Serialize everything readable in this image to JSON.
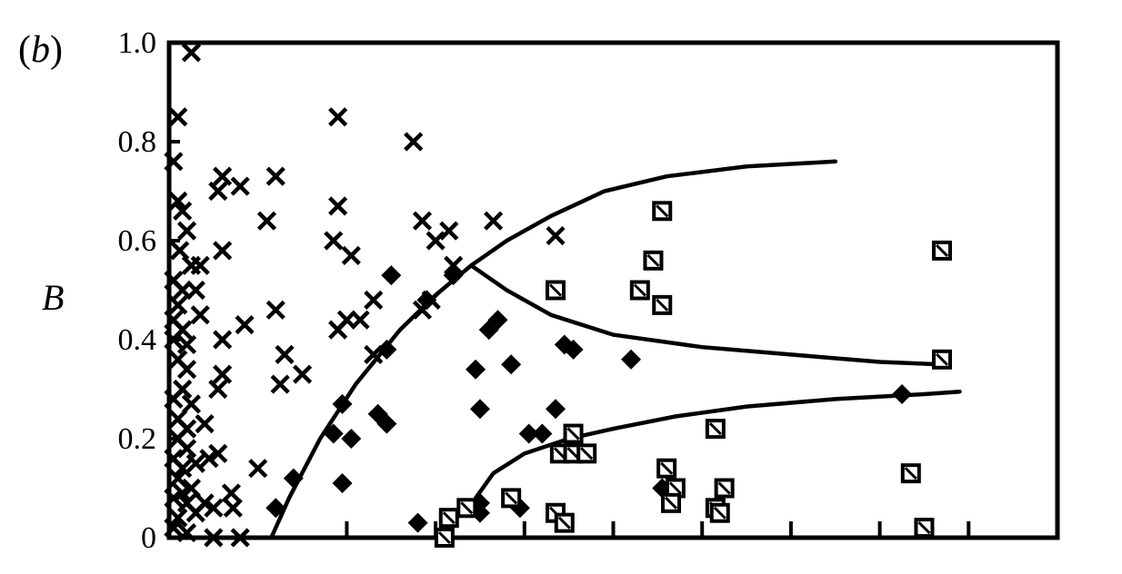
{
  "panel": {
    "prefix": "(",
    "letter": "b",
    "suffix": ")"
  },
  "chart_data": {
    "type": "scatter",
    "ylabel": "B",
    "xlabel": "",
    "ylim": [
      0,
      1.0
    ],
    "xlim": [
      0,
      10
    ],
    "grid": false,
    "legend": "none",
    "colors": {
      "marks": "#000000",
      "background": "#ffffff"
    },
    "yticks": [
      {
        "value": 0,
        "label": "0"
      },
      {
        "value": 0.2,
        "label": "0.2"
      },
      {
        "value": 0.4,
        "label": "0.4"
      },
      {
        "value": 0.6,
        "label": "0.6"
      },
      {
        "value": 0.8,
        "label": "0.8"
      },
      {
        "value": 1.0,
        "label": "1.0"
      }
    ],
    "xticks": [
      2,
      3,
      4,
      5,
      6,
      7,
      8,
      9
    ],
    "series": [
      {
        "marker": "cross",
        "points": [
          [
            0.25,
            0.98
          ],
          [
            0.1,
            0.85
          ],
          [
            0.05,
            0.76
          ],
          [
            0.1,
            0.68
          ],
          [
            0.15,
            0.66
          ],
          [
            0.2,
            0.62
          ],
          [
            0.12,
            0.58
          ],
          [
            0.25,
            0.55
          ],
          [
            0.35,
            0.55
          ],
          [
            0.05,
            0.52
          ],
          [
            0.15,
            0.5
          ],
          [
            0.3,
            0.5
          ],
          [
            0.1,
            0.47
          ],
          [
            0.35,
            0.45
          ],
          [
            0.05,
            0.44
          ],
          [
            0.15,
            0.42
          ],
          [
            0.05,
            0.4
          ],
          [
            0.2,
            0.39
          ],
          [
            0.1,
            0.36
          ],
          [
            0.2,
            0.34
          ],
          [
            0.15,
            0.3
          ],
          [
            0.05,
            0.28
          ],
          [
            0.25,
            0.27
          ],
          [
            0.1,
            0.24
          ],
          [
            0.2,
            0.22
          ],
          [
            0.4,
            0.23
          ],
          [
            0.1,
            0.2
          ],
          [
            0.2,
            0.18
          ],
          [
            0.05,
            0.16
          ],
          [
            0.15,
            0.14
          ],
          [
            0.3,
            0.15
          ],
          [
            0.45,
            0.16
          ],
          [
            0.1,
            0.12
          ],
          [
            0.25,
            0.1
          ],
          [
            0.05,
            0.08
          ],
          [
            0.2,
            0.07
          ],
          [
            0.4,
            0.07
          ],
          [
            0.1,
            0.04
          ],
          [
            0.3,
            0.05
          ],
          [
            0.05,
            0.02
          ],
          [
            0.2,
            0.01
          ],
          [
            0.15,
            0.09
          ],
          [
            0.55,
            0.7
          ],
          [
            0.6,
            0.73
          ],
          [
            0.8,
            0.71
          ],
          [
            0.6,
            0.58
          ],
          [
            0.6,
            0.4
          ],
          [
            0.6,
            0.33
          ],
          [
            0.55,
            0.3
          ],
          [
            0.55,
            0.17
          ],
          [
            0.5,
            0.06
          ],
          [
            0.7,
            0.09
          ],
          [
            0.72,
            0.06
          ],
          [
            0.5,
            0.0
          ],
          [
            0.8,
            0.0
          ],
          [
            0.85,
            0.43
          ],
          [
            1.1,
            0.64
          ],
          [
            1.2,
            0.73
          ],
          [
            1.2,
            0.46
          ],
          [
            1.25,
            0.31
          ],
          [
            1.3,
            0.37
          ],
          [
            1.5,
            0.33
          ],
          [
            1.0,
            0.14
          ],
          [
            1.9,
            0.85
          ],
          [
            1.9,
            0.67
          ],
          [
            1.85,
            0.6
          ],
          [
            2.05,
            0.57
          ],
          [
            1.9,
            0.42
          ],
          [
            2.0,
            0.44
          ],
          [
            2.15,
            0.44
          ],
          [
            2.3,
            0.48
          ],
          [
            2.3,
            0.37
          ],
          [
            2.75,
            0.8
          ],
          [
            2.85,
            0.64
          ],
          [
            3.0,
            0.6
          ],
          [
            3.15,
            0.62
          ],
          [
            2.85,
            0.46
          ],
          [
            2.95,
            0.48
          ],
          [
            3.2,
            0.55
          ],
          [
            3.65,
            0.64
          ],
          [
            4.35,
            0.61
          ]
        ]
      },
      {
        "marker": "diamond",
        "points": [
          [
            1.2,
            0.06
          ],
          [
            1.4,
            0.12
          ],
          [
            1.95,
            0.11
          ],
          [
            1.85,
            0.21
          ],
          [
            2.05,
            0.2
          ],
          [
            1.95,
            0.27
          ],
          [
            2.35,
            0.25
          ],
          [
            2.45,
            0.23
          ],
          [
            2.45,
            0.38
          ],
          [
            2.5,
            0.53
          ],
          [
            2.9,
            0.48
          ],
          [
            3.2,
            0.53
          ],
          [
            2.8,
            0.03
          ],
          [
            3.5,
            0.05
          ],
          [
            3.5,
            0.07
          ],
          [
            3.45,
            0.34
          ],
          [
            3.5,
            0.26
          ],
          [
            3.6,
            0.42
          ],
          [
            3.7,
            0.44
          ],
          [
            3.85,
            0.35
          ],
          [
            3.95,
            0.06
          ],
          [
            4.05,
            0.21
          ],
          [
            4.2,
            0.21
          ],
          [
            4.35,
            0.26
          ],
          [
            4.45,
            0.39
          ],
          [
            4.55,
            0.38
          ],
          [
            5.2,
            0.36
          ],
          [
            5.55,
            0.1
          ],
          [
            8.25,
            0.29
          ]
        ]
      },
      {
        "marker": "square",
        "points": [
          [
            3.1,
            0.0
          ],
          [
            3.15,
            0.04
          ],
          [
            3.35,
            0.06
          ],
          [
            3.85,
            0.08
          ],
          [
            4.35,
            0.05
          ],
          [
            4.45,
            0.03
          ],
          [
            4.35,
            0.5
          ],
          [
            4.4,
            0.17
          ],
          [
            4.55,
            0.21
          ],
          [
            4.55,
            0.17
          ],
          [
            4.7,
            0.17
          ],
          [
            5.3,
            0.5
          ],
          [
            5.45,
            0.56
          ],
          [
            5.55,
            0.47
          ],
          [
            5.55,
            0.66
          ],
          [
            5.6,
            0.14
          ],
          [
            5.7,
            0.1
          ],
          [
            5.65,
            0.07
          ],
          [
            6.15,
            0.22
          ],
          [
            6.15,
            0.06
          ],
          [
            6.2,
            0.05
          ],
          [
            6.25,
            0.1
          ],
          [
            8.35,
            0.13
          ],
          [
            8.5,
            0.02
          ],
          [
            8.7,
            0.58
          ],
          [
            8.7,
            0.36
          ]
        ]
      }
    ],
    "curves": [
      {
        "points": [
          [
            1.15,
            0.0
          ],
          [
            1.35,
            0.08
          ],
          [
            1.7,
            0.2
          ],
          [
            2.1,
            0.31
          ],
          [
            2.6,
            0.42
          ],
          [
            3.0,
            0.49
          ],
          [
            3.4,
            0.55
          ],
          [
            3.8,
            0.6
          ],
          [
            4.3,
            0.65
          ],
          [
            4.9,
            0.7
          ],
          [
            5.6,
            0.73
          ],
          [
            6.5,
            0.75
          ],
          [
            7.5,
            0.76
          ]
        ]
      },
      {
        "points": [
          [
            3.4,
            0.55
          ],
          [
            3.8,
            0.5
          ],
          [
            4.3,
            0.45
          ],
          [
            5.0,
            0.41
          ],
          [
            6.0,
            0.385
          ],
          [
            7.0,
            0.37
          ],
          [
            8.0,
            0.355
          ],
          [
            8.7,
            0.35
          ]
        ]
      },
      {
        "points": [
          [
            3.45,
            0.08
          ],
          [
            3.65,
            0.13
          ],
          [
            4.0,
            0.17
          ],
          [
            4.5,
            0.2
          ],
          [
            5.0,
            0.22
          ],
          [
            5.7,
            0.245
          ],
          [
            6.5,
            0.265
          ],
          [
            7.5,
            0.28
          ],
          [
            8.5,
            0.29
          ],
          [
            8.9,
            0.295
          ]
        ]
      }
    ]
  }
}
